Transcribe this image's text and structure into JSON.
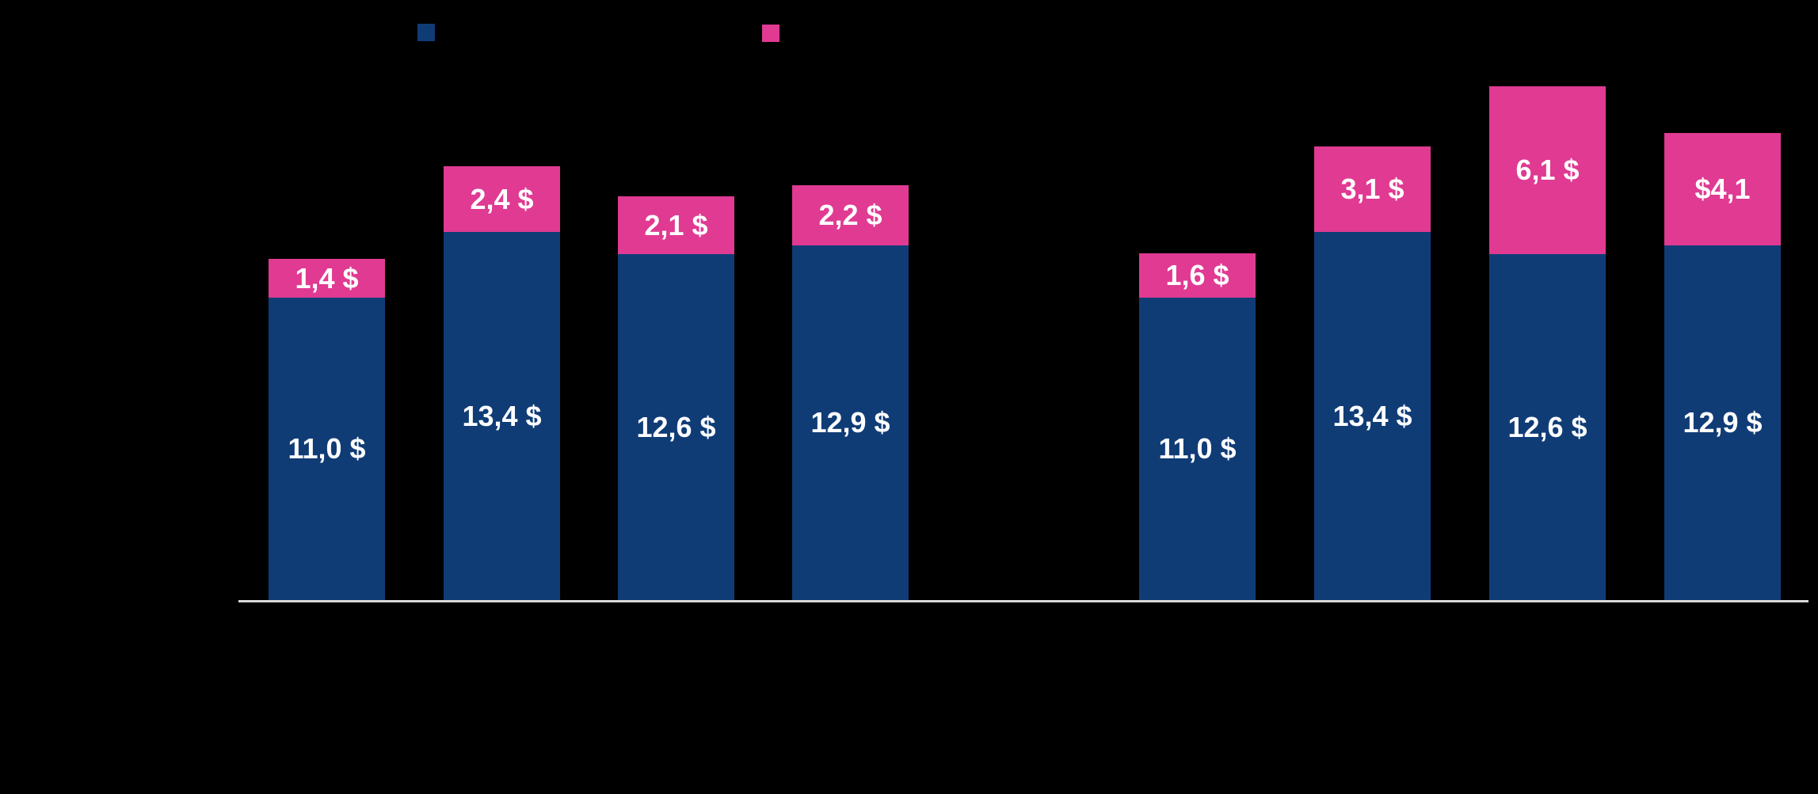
{
  "chart_data": {
    "type": "bar",
    "stacked": true,
    "title": "",
    "xlabel": "",
    "ylabel": "",
    "grid": false,
    "ylim": [
      0,
      20
    ],
    "background_color": "#000000",
    "axis_line_color": "#D9D9D9",
    "data_label_color": "#FFFFFF",
    "legend_position": "top",
    "legend": [
      {
        "series": "base-blue",
        "color": "#103C76",
        "label_visible": false
      },
      {
        "series": "top-pink",
        "color": "#E03A92",
        "label_visible": false
      }
    ],
    "x_tick_labels_visible": false,
    "groups": [
      {
        "id": "left-group",
        "bar_indexes": [
          0,
          1,
          2,
          3
        ]
      },
      {
        "id": "right-group",
        "bar_indexes": [
          4,
          5,
          6,
          7
        ]
      }
    ],
    "series": [
      {
        "name": "base-blue",
        "color": "#103C76",
        "values": [
          11.0,
          13.4,
          12.6,
          12.9,
          11.0,
          13.4,
          12.6,
          12.9
        ],
        "data_labels": [
          "11,0 $",
          "13,4 $",
          "12,6 $",
          "12,9 $",
          "11,0 $",
          "13,4 $",
          "12,6 $",
          "12,9 $"
        ]
      },
      {
        "name": "top-pink",
        "color": "#E03A92",
        "values": [
          1.4,
          2.4,
          2.1,
          2.2,
          1.6,
          3.1,
          6.1,
          4.1
        ],
        "data_labels": [
          "1,4 $",
          "2,4 $",
          "2,1 $",
          "2,2 $",
          "1,6 $",
          "3,1 $",
          "6,1 $",
          "$4,1"
        ]
      }
    ]
  }
}
